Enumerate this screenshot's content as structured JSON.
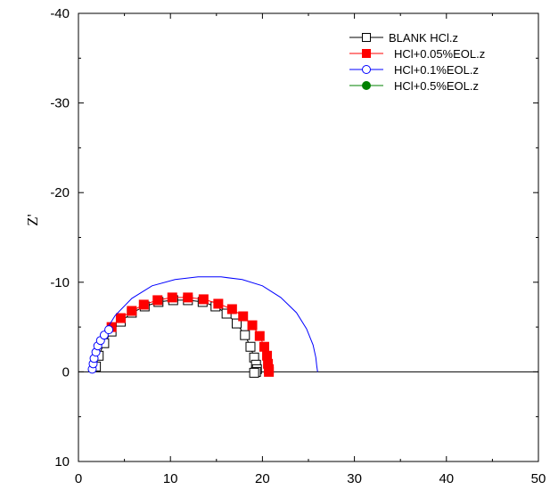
{
  "chart_data": {
    "type": "scatter",
    "title": "",
    "xlabel": "",
    "ylabel": "Z'",
    "xlim": [
      0,
      50
    ],
    "ylim": [
      10,
      -40
    ],
    "x_ticks": [
      "0",
      "10",
      "20",
      "30",
      "40",
      "50"
    ],
    "y_ticks": [
      "10",
      "0",
      "-10",
      "-20",
      "-30",
      "-40"
    ],
    "y_tick_values": [
      10,
      0,
      -10,
      -20,
      -30,
      -40
    ],
    "x_tick_values": [
      0,
      10,
      20,
      30,
      40,
      50
    ],
    "zero_line": 0,
    "legend_position": "top-right",
    "series": [
      {
        "name": "BLANK HCl.z",
        "color": "#000000",
        "marker": "square-open",
        "x": [
          1.9,
          2.2,
          2.8,
          3.6,
          4.6,
          5.8,
          7.2,
          8.7,
          10.3,
          11.9,
          13.5,
          14.9,
          16.1,
          17.2,
          18.1,
          18.7,
          19.1,
          19.3,
          19.4,
          19.3,
          19.1
        ],
        "y": [
          -0.6,
          -1.8,
          -3.2,
          -4.5,
          -5.6,
          -6.6,
          -7.3,
          -7.8,
          -8.0,
          -8.0,
          -7.8,
          -7.3,
          -6.5,
          -5.4,
          -4.1,
          -2.8,
          -1.6,
          -0.8,
          -0.3,
          0.0,
          0.1
        ]
      },
      {
        "name": "HCl+0.05%EOL.z",
        "color": "#ff0000",
        "marker": "square-filled",
        "x": [
          3.6,
          4.6,
          5.8,
          7.1,
          8.6,
          10.2,
          11.9,
          13.6,
          15.2,
          16.7,
          17.9,
          18.9,
          19.7,
          20.2,
          20.5,
          20.6,
          20.7,
          20.7
        ],
        "y": [
          -5.0,
          -6.0,
          -6.8,
          -7.5,
          -8.0,
          -8.3,
          -8.3,
          -8.1,
          -7.6,
          -7.0,
          -6.2,
          -5.2,
          -4.0,
          -2.8,
          -1.8,
          -0.9,
          -0.3,
          0.0
        ]
      },
      {
        "name": "HCl+0.1%EOL.z",
        "color": "#0000ff",
        "marker": "circle-open",
        "x": [
          1.5,
          1.6,
          1.7,
          1.9,
          2.1,
          2.4,
          2.8,
          3.3
        ],
        "y": [
          -0.3,
          -0.9,
          -1.5,
          -2.2,
          -2.9,
          -3.5,
          -4.1,
          -4.7
        ],
        "curve": {
          "x": [
            1.5,
            1.9,
            2.8,
            4.0,
            5.8,
            8.0,
            10.5,
            13.0,
            15.5,
            17.8,
            20.0,
            22.0,
            23.7,
            24.8,
            25.5,
            25.8,
            25.9,
            26.0
          ],
          "y": [
            -0.2,
            -2.0,
            -4.3,
            -6.3,
            -8.2,
            -9.6,
            -10.3,
            -10.6,
            -10.6,
            -10.3,
            -9.6,
            -8.3,
            -6.6,
            -4.8,
            -3.0,
            -1.6,
            -0.7,
            0.0
          ]
        }
      },
      {
        "name": "HCl+0.5%EOL.z",
        "color": "#008000",
        "marker": "circle-filled",
        "x": [],
        "y": []
      }
    ]
  }
}
